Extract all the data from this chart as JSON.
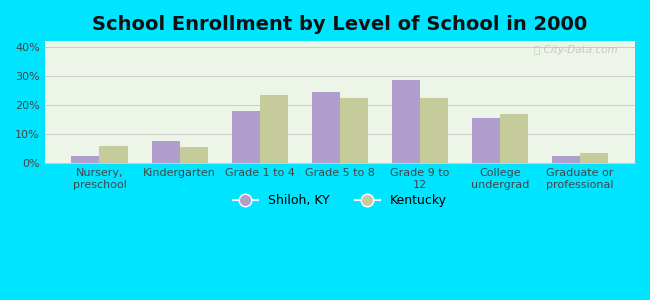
{
  "title": "School Enrollment by Level of School in 2000",
  "categories": [
    "Nursery,\npreschool",
    "Kindergarten",
    "Grade 1 to 4",
    "Grade 5 to 8",
    "Grade 9 to\n12",
    "College\nundergrad",
    "Graduate or\nprofessional"
  ],
  "shiloh_values": [
    2.5,
    7.5,
    18.0,
    24.5,
    28.5,
    15.5,
    2.5
  ],
  "kentucky_values": [
    6.0,
    5.5,
    23.5,
    22.5,
    22.5,
    17.0,
    3.5
  ],
  "shiloh_color": "#b09fcc",
  "kentucky_color": "#c5cb9a",
  "background_outer": "#00e5ff",
  "background_inner": "#edf5e8",
  "ylim": [
    0,
    42
  ],
  "yticks": [
    0,
    10,
    20,
    30,
    40
  ],
  "ytick_labels": [
    "0%",
    "10%",
    "20%",
    "30%",
    "40%"
  ],
  "grid_color": "#cccccc",
  "bar_width": 0.35,
  "legend_shiloh": "Shiloh, KY",
  "legend_kentucky": "Kentucky",
  "title_fontsize": 14,
  "tick_fontsize": 8,
  "legend_fontsize": 9
}
